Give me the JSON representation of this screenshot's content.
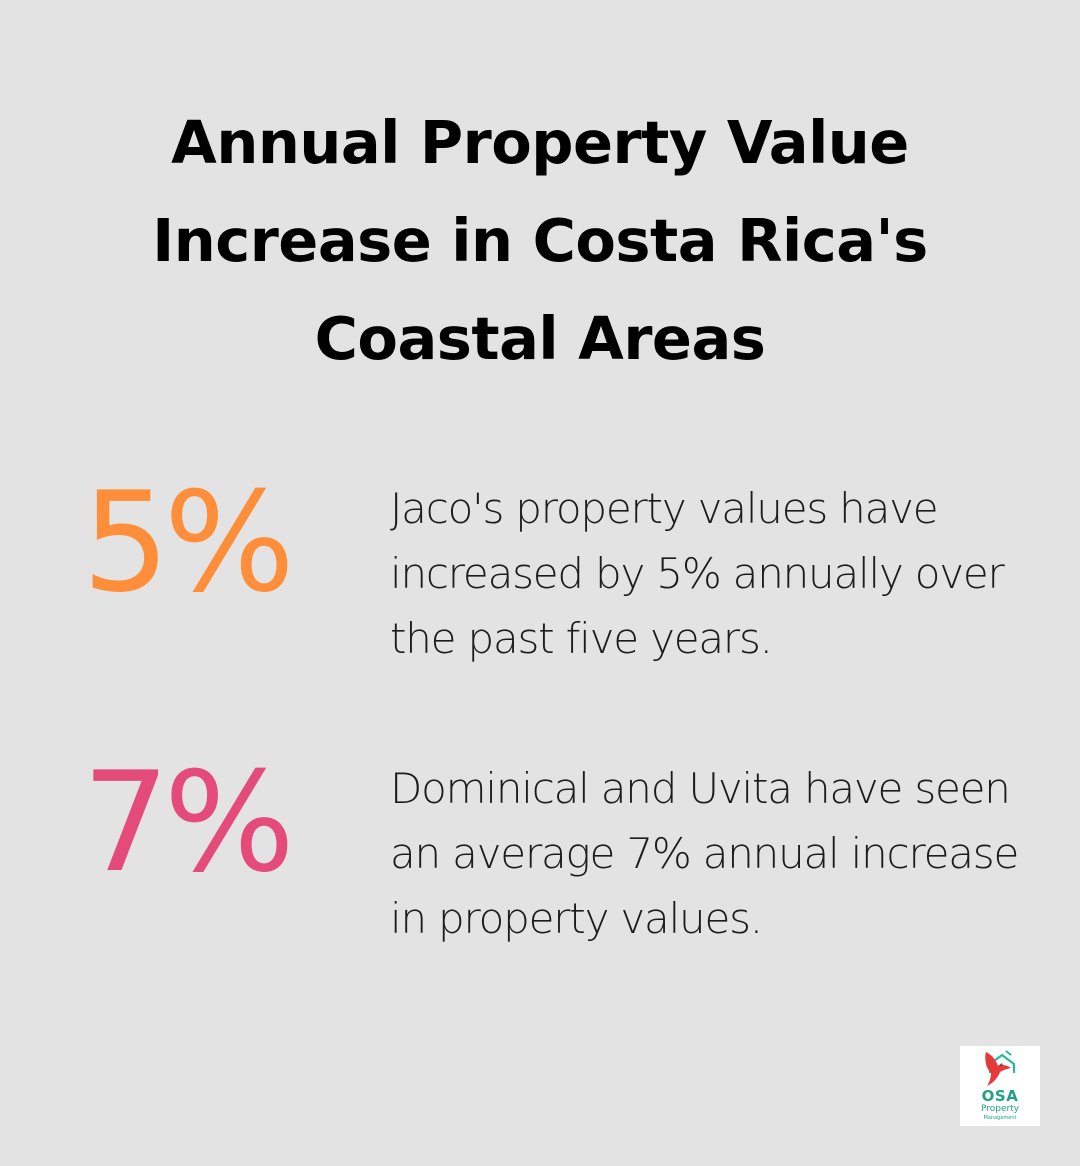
{
  "title": "Annual Property Value Increase in Costa Rica's Coastal Areas",
  "stats": [
    {
      "value": "5%",
      "text": "Jaco's property values have increased by 5% annually over the past five years.",
      "color": "#fe8e3a"
    },
    {
      "value": "7%",
      "text": "Dominical and Uvita have seen an average 7% annual increase in property values.",
      "color": "#e44b7a"
    }
  ],
  "logo": {
    "icon": "bird-over-house-icon",
    "name": "OSA",
    "line1": "Property",
    "line2": "Management",
    "colors": {
      "bird": "#e63a3a",
      "house": "#27b99a",
      "text": "#1fa37f"
    }
  },
  "colors": {
    "background": "#e2e3e2",
    "title": "#000000",
    "body_text": "#1c1c1c"
  }
}
